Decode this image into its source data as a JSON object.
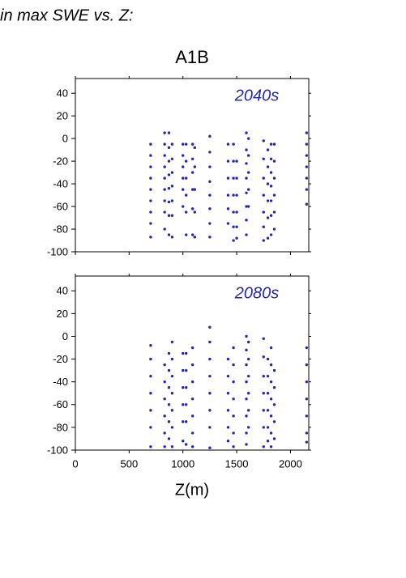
{
  "header": {
    "title": "in max SWE vs. Z:",
    "subtitle": "A1B"
  },
  "chart_data": [
    {
      "type": "scatter",
      "annotation": "2040s",
      "color": "#2626b4",
      "xlim": [
        0,
        2170
      ],
      "ylim": [
        -100,
        53
      ],
      "xticks": [
        0,
        500,
        1000,
        1500,
        2000
      ],
      "yticks": [
        -100,
        -80,
        -60,
        -40,
        -20,
        0,
        20,
        40
      ],
      "x": [
        700,
        700,
        700,
        700,
        700,
        700,
        700,
        700,
        700,
        830,
        830,
        830,
        830,
        830,
        830,
        830,
        830,
        830,
        870,
        870,
        870,
        870,
        870,
        870,
        870,
        870,
        900,
        900,
        900,
        900,
        900,
        900,
        900,
        1000,
        1000,
        1000,
        1000,
        1000,
        1000,
        1030,
        1030,
        1030,
        1030,
        1030,
        1030,
        1090,
        1090,
        1090,
        1090,
        1090,
        1090,
        1110,
        1110,
        1110,
        1110,
        1110,
        1250,
        1250,
        1250,
        1250,
        1250,
        1250,
        1250,
        1250,
        1420,
        1420,
        1420,
        1420,
        1420,
        1420,
        1470,
        1470,
        1470,
        1470,
        1470,
        1470,
        1470,
        1500,
        1500,
        1500,
        1500,
        1500,
        1500,
        1590,
        1590,
        1590,
        1590,
        1590,
        1590,
        1590,
        1590,
        1610,
        1610,
        1610,
        1610,
        1610,
        1750,
        1750,
        1750,
        1750,
        1750,
        1750,
        1750,
        1790,
        1790,
        1790,
        1790,
        1790,
        1790,
        1820,
        1820,
        1820,
        1820,
        1820,
        1820,
        1820,
        1850,
        1850,
        1850,
        1850,
        1850,
        1850,
        2150,
        2150,
        2150,
        2150,
        2150,
        2150,
        2150
      ],
      "y": [
        -5,
        -15,
        -25,
        -35,
        -45,
        -55,
        -65,
        -75,
        -87,
        5,
        -5,
        -15,
        -25,
        -35,
        -45,
        -55,
        -65,
        -80,
        5,
        -8,
        -20,
        -32,
        -44,
        -56,
        -68,
        -85,
        -5,
        -18,
        -30,
        -42,
        -55,
        -68,
        -87,
        -5,
        -15,
        -25,
        -35,
        -45,
        -60,
        -5,
        -20,
        -35,
        -50,
        -65,
        -85,
        -5,
        -18,
        -30,
        -45,
        -62,
        -85,
        -8,
        -25,
        -45,
        -65,
        -87,
        2,
        -12,
        -25,
        -38,
        -50,
        -62,
        -75,
        -87,
        -5,
        -20,
        -35,
        -50,
        -62,
        -75,
        -5,
        -20,
        -35,
        -50,
        -65,
        -78,
        -90,
        -20,
        -35,
        -50,
        -65,
        -78,
        -88,
        5,
        -10,
        -22,
        -35,
        -48,
        -60,
        -72,
        -85,
        0,
        -15,
        -30,
        -45,
        -60,
        -2,
        -18,
        -35,
        -50,
        -65,
        -78,
        -90,
        -10,
        -25,
        -40,
        -55,
        -70,
        -88,
        -5,
        -18,
        -30,
        -42,
        -55,
        -68,
        -85,
        -5,
        -20,
        -35,
        -50,
        -65,
        -80,
        5,
        -5,
        -15,
        -25,
        -35,
        -45,
        -58
      ]
    },
    {
      "type": "scatter",
      "annotation": "2080s",
      "color": "#2626b4",
      "xlabel": "Z(m)",
      "xlim": [
        0,
        2170
      ],
      "ylim": [
        -100,
        53
      ],
      "xticks": [
        0,
        500,
        1000,
        1500,
        2000
      ],
      "yticks": [
        -100,
        -80,
        -60,
        -40,
        -20,
        0,
        20,
        40
      ],
      "x": [
        700,
        700,
        700,
        700,
        700,
        700,
        700,
        830,
        830,
        830,
        830,
        830,
        830,
        870,
        870,
        870,
        870,
        870,
        870,
        900,
        900,
        900,
        900,
        900,
        900,
        900,
        1000,
        1000,
        1000,
        1000,
        1000,
        1000,
        1030,
        1030,
        1030,
        1030,
        1030,
        1030,
        1090,
        1090,
        1090,
        1090,
        1090,
        1090,
        1090,
        1250,
        1250,
        1250,
        1250,
        1250,
        1250,
        1250,
        1250,
        1420,
        1420,
        1420,
        1420,
        1420,
        1420,
        1470,
        1470,
        1470,
        1470,
        1470,
        1470,
        1470,
        1590,
        1590,
        1590,
        1590,
        1590,
        1590,
        1590,
        1590,
        1610,
        1610,
        1610,
        1610,
        1610,
        1610,
        1750,
        1750,
        1750,
        1750,
        1750,
        1750,
        1750,
        1790,
        1790,
        1790,
        1790,
        1790,
        1790,
        1820,
        1820,
        1820,
        1820,
        1820,
        1820,
        1820,
        1850,
        1850,
        1850,
        1850,
        1850,
        2150,
        2150,
        2150,
        2150,
        2150,
        2150,
        2150
      ],
      "y": [
        -8,
        -20,
        -35,
        -50,
        -65,
        -80,
        -97,
        -25,
        -40,
        -55,
        -70,
        -85,
        -97,
        -15,
        -30,
        -45,
        -60,
        -75,
        -90,
        -5,
        -20,
        -35,
        -50,
        -65,
        -80,
        -97,
        -15,
        -30,
        -45,
        -60,
        -75,
        -92,
        -15,
        -30,
        -45,
        -60,
        -75,
        -95,
        -10,
        -25,
        -40,
        -55,
        -70,
        -85,
        -97,
        8,
        -5,
        -20,
        -35,
        -50,
        -65,
        -80,
        -98,
        -20,
        -35,
        -50,
        -65,
        -80,
        -92,
        -10,
        -25,
        -40,
        -55,
        -70,
        -85,
        -97,
        0,
        -12,
        -25,
        -40,
        -55,
        -70,
        -85,
        -95,
        -5,
        -20,
        -35,
        -50,
        -65,
        -80,
        -2,
        -18,
        -35,
        -50,
        -65,
        -80,
        -97,
        -20,
        -35,
        -50,
        -65,
        -80,
        -92,
        -10,
        -25,
        -40,
        -55,
        -70,
        -85,
        -97,
        -30,
        -45,
        -60,
        -75,
        -90,
        -10,
        -25,
        -40,
        -55,
        -70,
        -85,
        -93
      ]
    }
  ]
}
